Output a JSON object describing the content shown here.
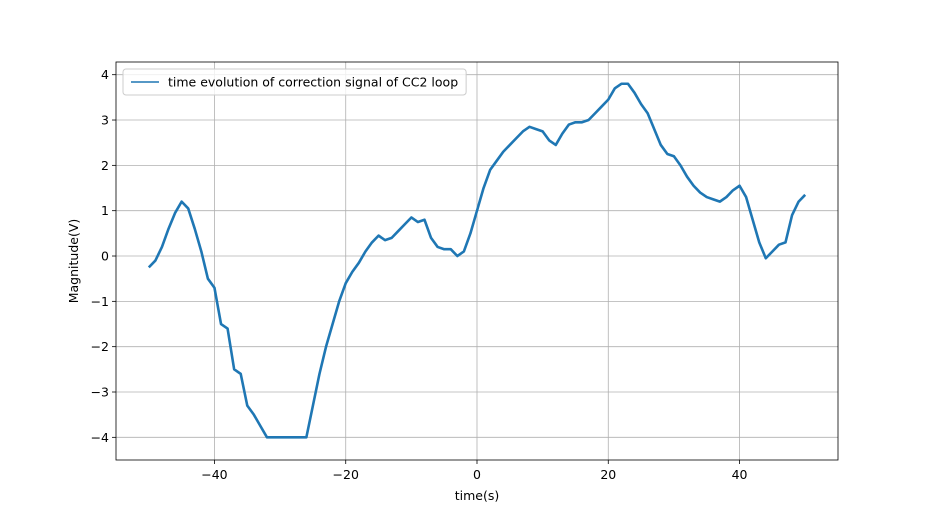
{
  "chart_data": {
    "type": "line",
    "xlabel": "time(s)",
    "ylabel": "Magnitude(V)",
    "x": [
      -50,
      -49,
      -48,
      -47,
      -46,
      -45,
      -44,
      -43,
      -42,
      -41,
      -40,
      -39,
      -38,
      -37,
      -36,
      -35,
      -34,
      -33,
      -32,
      -30,
      -28,
      -26,
      -25,
      -24,
      -23,
      -22,
      -21,
      -20,
      -19,
      -18,
      -17,
      -16,
      -15,
      -14,
      -13,
      -12,
      -11,
      -10,
      -9,
      -8,
      -7,
      -6,
      -5,
      -4,
      -3,
      -2,
      -1,
      0,
      1,
      2,
      3,
      4,
      5,
      6,
      7,
      8,
      9,
      10,
      11,
      12,
      13,
      14,
      15,
      16,
      17,
      18,
      19,
      20,
      21,
      22,
      23,
      24,
      25,
      26,
      27,
      28,
      29,
      30,
      31,
      32,
      33,
      34,
      35,
      36,
      37,
      38,
      39,
      40,
      41,
      42,
      43,
      44,
      45,
      46,
      47,
      48,
      49,
      50
    ],
    "series": [
      {
        "name": "time evolution of correction signal of CC2 loop",
        "color": "#1f77b4",
        "values": [
          -0.25,
          -0.1,
          0.2,
          0.6,
          0.95,
          1.2,
          1.05,
          0.6,
          0.1,
          -0.5,
          -0.7,
          -1.5,
          -1.6,
          -2.5,
          -2.6,
          -3.3,
          -3.5,
          -3.75,
          -4.0,
          -4.0,
          -4.0,
          -4.0,
          -3.3,
          -2.6,
          -2.0,
          -1.5,
          -1.0,
          -0.6,
          -0.35,
          -0.15,
          0.1,
          0.3,
          0.45,
          0.35,
          0.4,
          0.55,
          0.7,
          0.85,
          0.75,
          0.8,
          0.4,
          0.2,
          0.15,
          0.15,
          0.0,
          0.1,
          0.5,
          1.0,
          1.5,
          1.9,
          2.1,
          2.3,
          2.45,
          2.6,
          2.75,
          2.85,
          2.8,
          2.75,
          2.55,
          2.45,
          2.7,
          2.9,
          2.95,
          2.95,
          3.0,
          3.15,
          3.3,
          3.45,
          3.7,
          3.8,
          3.8,
          3.6,
          3.35,
          3.15,
          2.8,
          2.45,
          2.25,
          2.2,
          2.0,
          1.75,
          1.55,
          1.4,
          1.3,
          1.25,
          1.2,
          1.3,
          1.45,
          1.55,
          1.3,
          0.8,
          0.3,
          -0.05,
          0.1,
          0.25,
          0.3,
          0.9,
          1.2,
          1.35
        ]
      }
    ],
    "xlim": [
      -55,
      55
    ],
    "ylim": [
      -4.5,
      4.28
    ],
    "xticks": [
      {
        "value": -40,
        "label": "−40"
      },
      {
        "value": -20,
        "label": "−20"
      },
      0,
      20,
      40
    ],
    "yticks": [
      {
        "value": -4,
        "label": "−4"
      },
      {
        "value": -3,
        "label": "−3"
      },
      {
        "value": -2,
        "label": "−2"
      },
      {
        "value": -1,
        "label": "−1"
      },
      0,
      1,
      2,
      3,
      4
    ],
    "grid": true,
    "legend": "upper left"
  }
}
